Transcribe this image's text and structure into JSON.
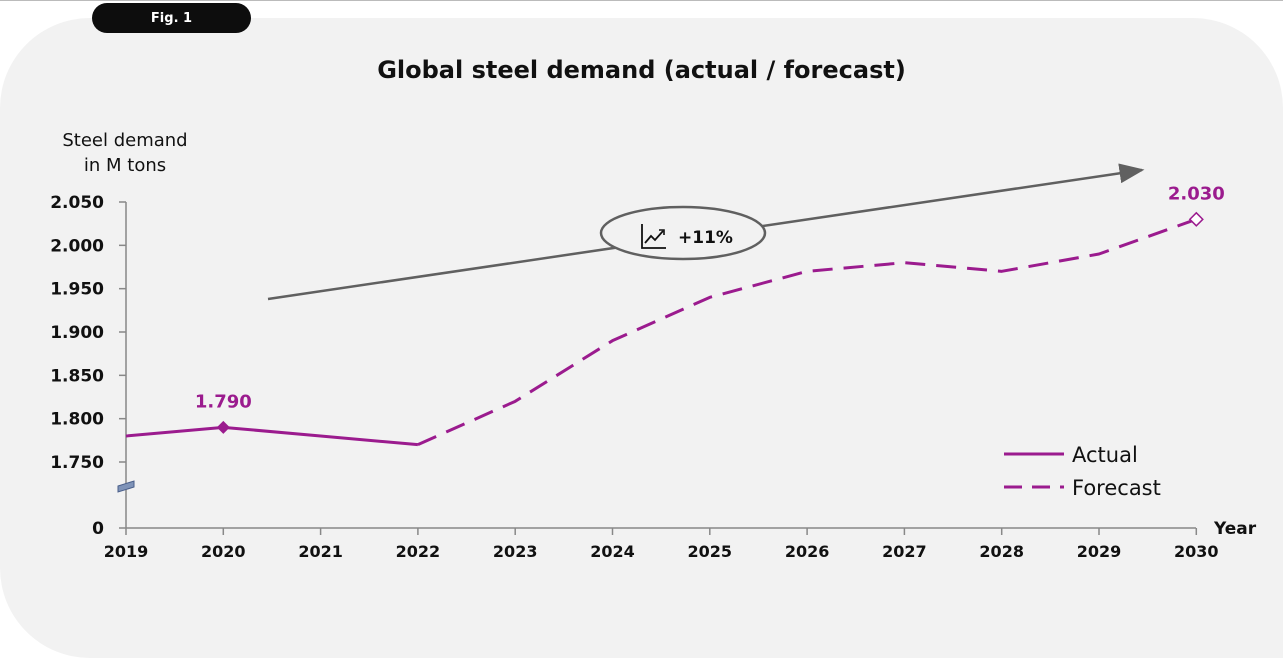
{
  "figure_badge": "Fig. 1",
  "chart_data": {
    "type": "line",
    "title": "Global steel demand (actual / forecast)",
    "ylabel": "Steel demand\nin M tons",
    "xlabel": "Year",
    "x": [
      "2019",
      "2020",
      "2021",
      "2022",
      "2023",
      "2024",
      "2025",
      "2026",
      "2027",
      "2028",
      "2029",
      "2030"
    ],
    "y_ticks": [
      "0",
      "1.750",
      "1.800",
      "1.850",
      "1.900",
      "1.950",
      "2.000",
      "2.050"
    ],
    "ylim": [
      1750,
      2050
    ],
    "axis_break": true,
    "series": [
      {
        "name": "Actual",
        "style": "solid",
        "x": [
          "2019",
          "2020",
          "2021",
          "2022"
        ],
        "values": [
          1780,
          1790,
          1780,
          1770
        ]
      },
      {
        "name": "Forecast",
        "style": "dashed",
        "x": [
          "2022",
          "2023",
          "2024",
          "2025",
          "2026",
          "2027",
          "2028",
          "2029",
          "2030"
        ],
        "values": [
          1770,
          1820,
          1890,
          1940,
          1970,
          1980,
          1970,
          1990,
          2030
        ]
      }
    ],
    "annotations": [
      {
        "x": "2020",
        "value": 1790,
        "label": "1.790",
        "marker": "filled-diamond"
      },
      {
        "x": "2030",
        "value": 2030,
        "label": "2.030",
        "marker": "open-diamond"
      }
    ],
    "trend": {
      "label": "+11%",
      "icon": "chart-trend-icon"
    },
    "legend_position": "bottom-right",
    "colors": {
      "series": "#9b1b8e",
      "trend_arrow": "#606060",
      "text": "#111111"
    }
  }
}
